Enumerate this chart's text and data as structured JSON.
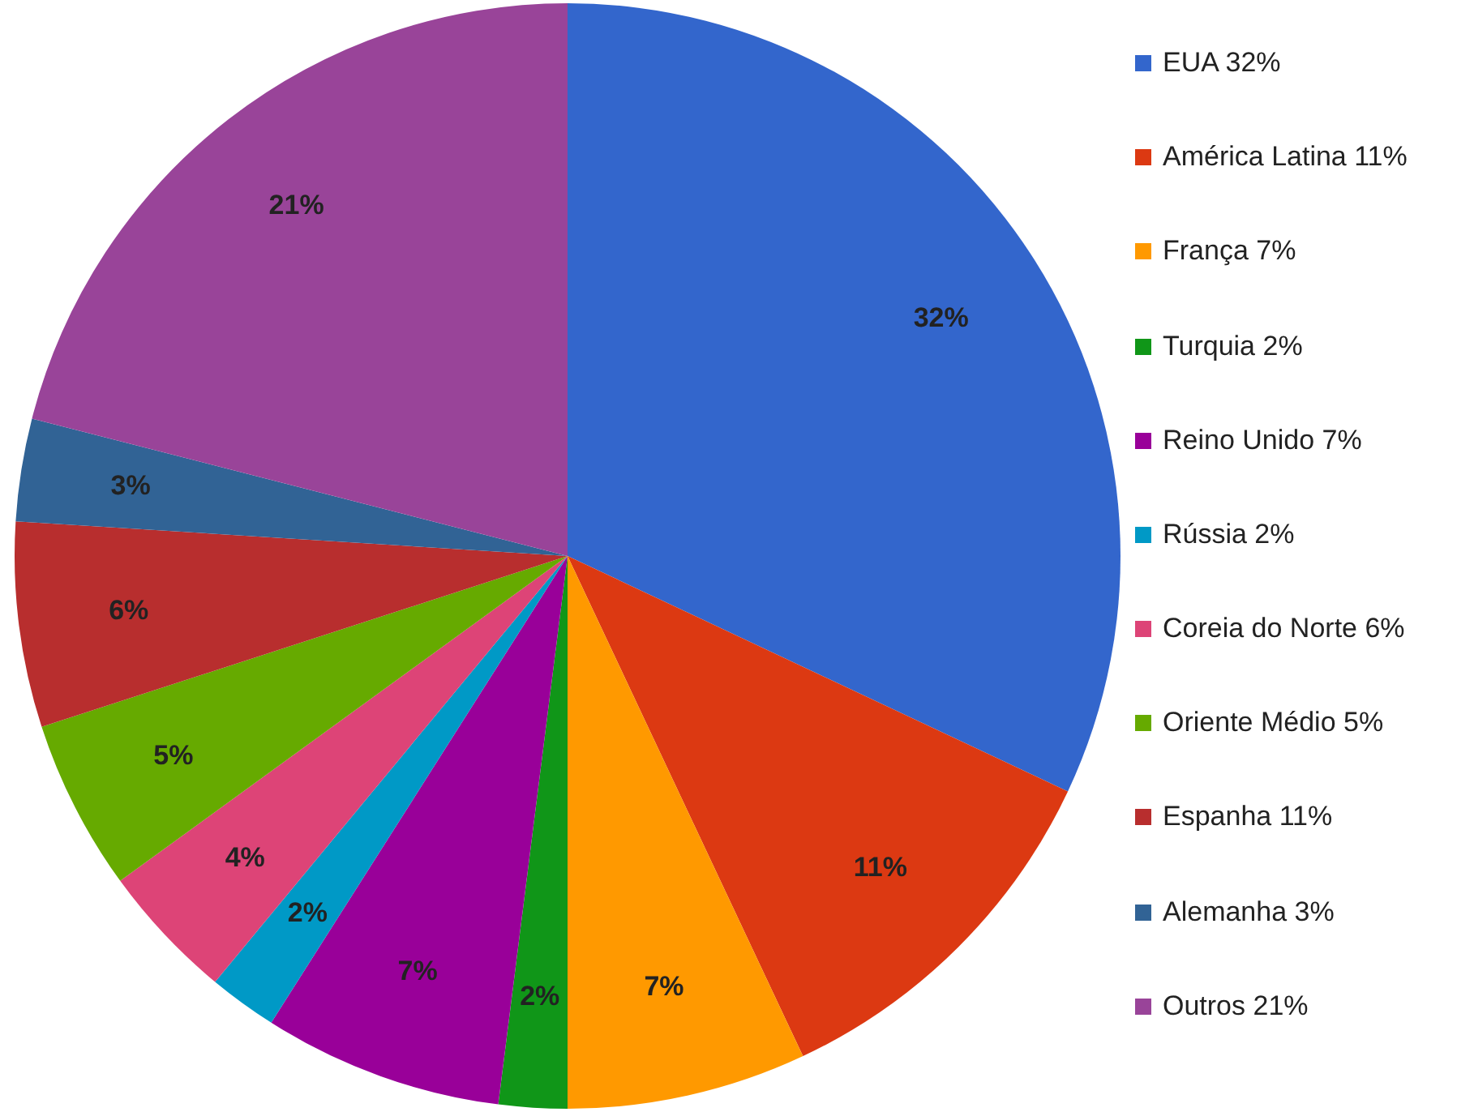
{
  "chart_data": {
    "type": "pie",
    "categories": [
      "EUA  32%",
      "América Latina 11%",
      "França 7%",
      "Turquia 2%",
      "Reino Unido 7%",
      "Rússia 2%",
      "Coreia do Norte 6%",
      "Oriente Médio 5%",
      "Espanha 11%",
      "Alemanha 3%",
      "Outros 21%"
    ],
    "values": [
      32,
      11,
      7,
      2,
      7,
      2,
      4,
      5,
      6,
      3,
      21
    ],
    "value_labels": [
      "32%",
      "11%",
      "7%",
      "2%",
      "7%",
      "2%",
      "4%",
      "5%",
      "6%",
      "3%",
      "21%"
    ],
    "colors": [
      "#3366cc",
      "#dc3912",
      "#ff9900",
      "#109618",
      "#990099",
      "#0099c6",
      "#dd4477",
      "#66aa00",
      "#b82e2e",
      "#316395",
      "#994499"
    ],
    "legend": "right"
  }
}
